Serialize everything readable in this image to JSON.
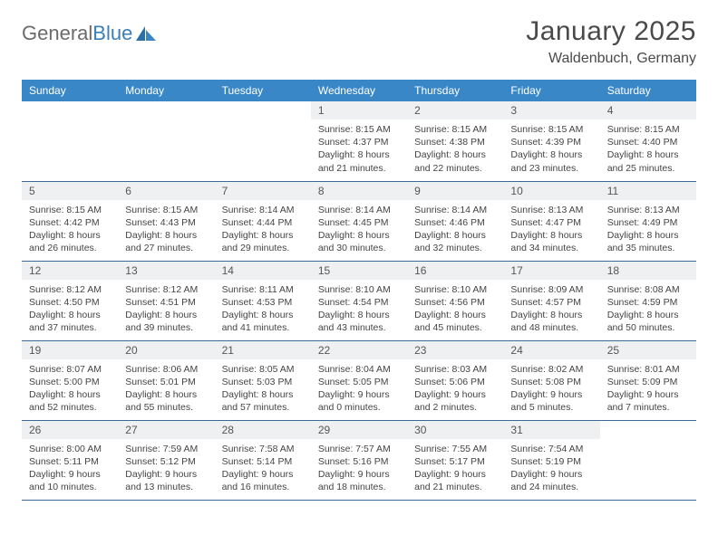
{
  "brand": {
    "part1": "General",
    "part2": "Blue"
  },
  "title": "January 2025",
  "location": "Waldenbuch, Germany",
  "colors": {
    "header_bg": "#3a87c7",
    "header_text": "#ffffff",
    "daynum_bg": "#eef0f2",
    "row_border": "#3a6a94",
    "logo_blue": "#3a7fb8",
    "text": "#444444"
  },
  "weekdays": [
    "Sunday",
    "Monday",
    "Tuesday",
    "Wednesday",
    "Thursday",
    "Friday",
    "Saturday"
  ],
  "weeks": [
    [
      {
        "day": "",
        "sunrise": "",
        "sunset": "",
        "daylight1": "",
        "daylight2": ""
      },
      {
        "day": "",
        "sunrise": "",
        "sunset": "",
        "daylight1": "",
        "daylight2": ""
      },
      {
        "day": "",
        "sunrise": "",
        "sunset": "",
        "daylight1": "",
        "daylight2": ""
      },
      {
        "day": "1",
        "sunrise": "Sunrise: 8:15 AM",
        "sunset": "Sunset: 4:37 PM",
        "daylight1": "Daylight: 8 hours",
        "daylight2": "and 21 minutes."
      },
      {
        "day": "2",
        "sunrise": "Sunrise: 8:15 AM",
        "sunset": "Sunset: 4:38 PM",
        "daylight1": "Daylight: 8 hours",
        "daylight2": "and 22 minutes."
      },
      {
        "day": "3",
        "sunrise": "Sunrise: 8:15 AM",
        "sunset": "Sunset: 4:39 PM",
        "daylight1": "Daylight: 8 hours",
        "daylight2": "and 23 minutes."
      },
      {
        "day": "4",
        "sunrise": "Sunrise: 8:15 AM",
        "sunset": "Sunset: 4:40 PM",
        "daylight1": "Daylight: 8 hours",
        "daylight2": "and 25 minutes."
      }
    ],
    [
      {
        "day": "5",
        "sunrise": "Sunrise: 8:15 AM",
        "sunset": "Sunset: 4:42 PM",
        "daylight1": "Daylight: 8 hours",
        "daylight2": "and 26 minutes."
      },
      {
        "day": "6",
        "sunrise": "Sunrise: 8:15 AM",
        "sunset": "Sunset: 4:43 PM",
        "daylight1": "Daylight: 8 hours",
        "daylight2": "and 27 minutes."
      },
      {
        "day": "7",
        "sunrise": "Sunrise: 8:14 AM",
        "sunset": "Sunset: 4:44 PM",
        "daylight1": "Daylight: 8 hours",
        "daylight2": "and 29 minutes."
      },
      {
        "day": "8",
        "sunrise": "Sunrise: 8:14 AM",
        "sunset": "Sunset: 4:45 PM",
        "daylight1": "Daylight: 8 hours",
        "daylight2": "and 30 minutes."
      },
      {
        "day": "9",
        "sunrise": "Sunrise: 8:14 AM",
        "sunset": "Sunset: 4:46 PM",
        "daylight1": "Daylight: 8 hours",
        "daylight2": "and 32 minutes."
      },
      {
        "day": "10",
        "sunrise": "Sunrise: 8:13 AM",
        "sunset": "Sunset: 4:47 PM",
        "daylight1": "Daylight: 8 hours",
        "daylight2": "and 34 minutes."
      },
      {
        "day": "11",
        "sunrise": "Sunrise: 8:13 AM",
        "sunset": "Sunset: 4:49 PM",
        "daylight1": "Daylight: 8 hours",
        "daylight2": "and 35 minutes."
      }
    ],
    [
      {
        "day": "12",
        "sunrise": "Sunrise: 8:12 AM",
        "sunset": "Sunset: 4:50 PM",
        "daylight1": "Daylight: 8 hours",
        "daylight2": "and 37 minutes."
      },
      {
        "day": "13",
        "sunrise": "Sunrise: 8:12 AM",
        "sunset": "Sunset: 4:51 PM",
        "daylight1": "Daylight: 8 hours",
        "daylight2": "and 39 minutes."
      },
      {
        "day": "14",
        "sunrise": "Sunrise: 8:11 AM",
        "sunset": "Sunset: 4:53 PM",
        "daylight1": "Daylight: 8 hours",
        "daylight2": "and 41 minutes."
      },
      {
        "day": "15",
        "sunrise": "Sunrise: 8:10 AM",
        "sunset": "Sunset: 4:54 PM",
        "daylight1": "Daylight: 8 hours",
        "daylight2": "and 43 minutes."
      },
      {
        "day": "16",
        "sunrise": "Sunrise: 8:10 AM",
        "sunset": "Sunset: 4:56 PM",
        "daylight1": "Daylight: 8 hours",
        "daylight2": "and 45 minutes."
      },
      {
        "day": "17",
        "sunrise": "Sunrise: 8:09 AM",
        "sunset": "Sunset: 4:57 PM",
        "daylight1": "Daylight: 8 hours",
        "daylight2": "and 48 minutes."
      },
      {
        "day": "18",
        "sunrise": "Sunrise: 8:08 AM",
        "sunset": "Sunset: 4:59 PM",
        "daylight1": "Daylight: 8 hours",
        "daylight2": "and 50 minutes."
      }
    ],
    [
      {
        "day": "19",
        "sunrise": "Sunrise: 8:07 AM",
        "sunset": "Sunset: 5:00 PM",
        "daylight1": "Daylight: 8 hours",
        "daylight2": "and 52 minutes."
      },
      {
        "day": "20",
        "sunrise": "Sunrise: 8:06 AM",
        "sunset": "Sunset: 5:01 PM",
        "daylight1": "Daylight: 8 hours",
        "daylight2": "and 55 minutes."
      },
      {
        "day": "21",
        "sunrise": "Sunrise: 8:05 AM",
        "sunset": "Sunset: 5:03 PM",
        "daylight1": "Daylight: 8 hours",
        "daylight2": "and 57 minutes."
      },
      {
        "day": "22",
        "sunrise": "Sunrise: 8:04 AM",
        "sunset": "Sunset: 5:05 PM",
        "daylight1": "Daylight: 9 hours",
        "daylight2": "and 0 minutes."
      },
      {
        "day": "23",
        "sunrise": "Sunrise: 8:03 AM",
        "sunset": "Sunset: 5:06 PM",
        "daylight1": "Daylight: 9 hours",
        "daylight2": "and 2 minutes."
      },
      {
        "day": "24",
        "sunrise": "Sunrise: 8:02 AM",
        "sunset": "Sunset: 5:08 PM",
        "daylight1": "Daylight: 9 hours",
        "daylight2": "and 5 minutes."
      },
      {
        "day": "25",
        "sunrise": "Sunrise: 8:01 AM",
        "sunset": "Sunset: 5:09 PM",
        "daylight1": "Daylight: 9 hours",
        "daylight2": "and 7 minutes."
      }
    ],
    [
      {
        "day": "26",
        "sunrise": "Sunrise: 8:00 AM",
        "sunset": "Sunset: 5:11 PM",
        "daylight1": "Daylight: 9 hours",
        "daylight2": "and 10 minutes."
      },
      {
        "day": "27",
        "sunrise": "Sunrise: 7:59 AM",
        "sunset": "Sunset: 5:12 PM",
        "daylight1": "Daylight: 9 hours",
        "daylight2": "and 13 minutes."
      },
      {
        "day": "28",
        "sunrise": "Sunrise: 7:58 AM",
        "sunset": "Sunset: 5:14 PM",
        "daylight1": "Daylight: 9 hours",
        "daylight2": "and 16 minutes."
      },
      {
        "day": "29",
        "sunrise": "Sunrise: 7:57 AM",
        "sunset": "Sunset: 5:16 PM",
        "daylight1": "Daylight: 9 hours",
        "daylight2": "and 18 minutes."
      },
      {
        "day": "30",
        "sunrise": "Sunrise: 7:55 AM",
        "sunset": "Sunset: 5:17 PM",
        "daylight1": "Daylight: 9 hours",
        "daylight2": "and 21 minutes."
      },
      {
        "day": "31",
        "sunrise": "Sunrise: 7:54 AM",
        "sunset": "Sunset: 5:19 PM",
        "daylight1": "Daylight: 9 hours",
        "daylight2": "and 24 minutes."
      },
      {
        "day": "",
        "sunrise": "",
        "sunset": "",
        "daylight1": "",
        "daylight2": ""
      }
    ]
  ]
}
